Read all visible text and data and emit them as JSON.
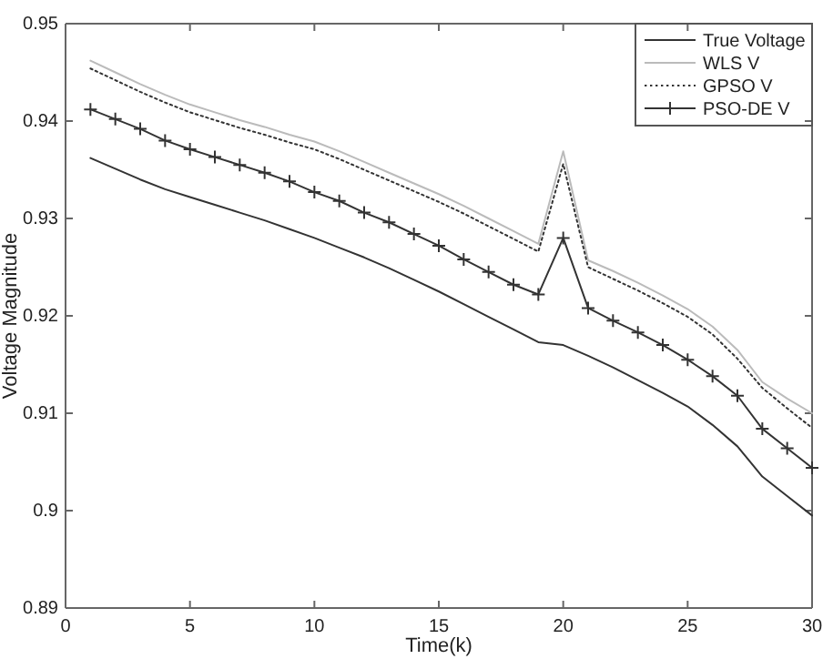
{
  "chart_data": {
    "type": "line",
    "xlabel": "Time(k)",
    "ylabel": "Voltage Magnitude",
    "x": [
      1,
      2,
      3,
      4,
      5,
      6,
      7,
      8,
      9,
      10,
      11,
      12,
      13,
      14,
      15,
      16,
      17,
      18,
      19,
      20,
      21,
      22,
      23,
      24,
      25,
      26,
      27,
      28,
      29,
      30
    ],
    "series": [
      {
        "name": "True Voltage",
        "color": "#333333",
        "line_style": "solid",
        "marker": "none",
        "values": [
          0.9362,
          0.9351,
          0.934,
          0.933,
          0.9322,
          0.9314,
          0.9306,
          0.9298,
          0.9289,
          0.928,
          0.927,
          0.926,
          0.9249,
          0.9237,
          0.9225,
          0.9212,
          0.9199,
          0.9186,
          0.9173,
          0.917,
          0.9159,
          0.9147,
          0.9134,
          0.9121,
          0.9107,
          0.9088,
          0.9066,
          0.9035,
          0.9015,
          0.8995
        ]
      },
      {
        "name": "WLS V",
        "color": "#bbbbbb",
        "line_style": "solid",
        "marker": "none",
        "values": [
          0.9462,
          0.945,
          0.9438,
          0.9427,
          0.9417,
          0.9409,
          0.9401,
          0.9394,
          0.9386,
          0.9379,
          0.9369,
          0.9358,
          0.9347,
          0.9336,
          0.9325,
          0.9313,
          0.93,
          0.9287,
          0.9274,
          0.9369,
          0.9257,
          0.9246,
          0.9234,
          0.9221,
          0.9207,
          0.9189,
          0.9165,
          0.9132,
          0.9115,
          0.91
        ]
      },
      {
        "name": "GPSO V",
        "color": "#333333",
        "line_style": "dotted",
        "marker": "none",
        "values": [
          0.9454,
          0.9442,
          0.943,
          0.9419,
          0.9409,
          0.9401,
          0.9393,
          0.9386,
          0.9378,
          0.9371,
          0.9361,
          0.935,
          0.9339,
          0.9328,
          0.9317,
          0.9305,
          0.9292,
          0.9279,
          0.9266,
          0.9356,
          0.925,
          0.9238,
          0.9226,
          0.9213,
          0.9199,
          0.9181,
          0.9156,
          0.9126,
          0.9105,
          0.9085
        ]
      },
      {
        "name": "PSO-DE V",
        "color": "#333333",
        "line_style": "solid",
        "marker": "cross",
        "values": [
          0.9412,
          0.9402,
          0.9392,
          0.938,
          0.9371,
          0.9363,
          0.9355,
          0.9347,
          0.9338,
          0.9327,
          0.9318,
          0.9306,
          0.9296,
          0.9284,
          0.9272,
          0.9258,
          0.9245,
          0.9232,
          0.9222,
          0.928,
          0.9208,
          0.9195,
          0.9183,
          0.917,
          0.9155,
          0.9138,
          0.9118,
          0.9084,
          0.9064,
          0.9044
        ]
      }
    ],
    "xlim": [
      0,
      30
    ],
    "xticks": [
      0,
      5,
      10,
      15,
      20,
      25,
      30
    ],
    "ylim": [
      0.89,
      0.95
    ],
    "yticks": [
      0.89,
      0.9,
      0.91,
      0.92,
      0.93,
      0.94,
      0.95
    ],
    "grid": false,
    "legend": "top right"
  }
}
